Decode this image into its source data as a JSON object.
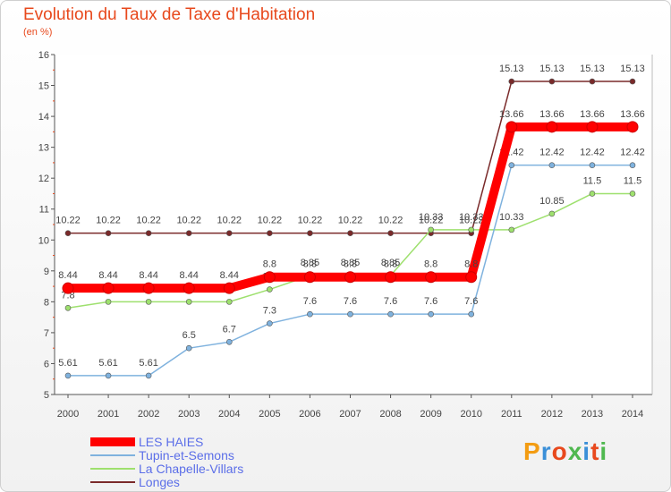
{
  "header": {
    "title": "Evolution du Taux de Taxe d'Habitation",
    "unit": "(en %)"
  },
  "brand": {
    "text": "Proxiti",
    "colors": [
      "#f39c12",
      "#3a8fd8",
      "#e8491d",
      "#4fb84f",
      "#3a8fd8",
      "#e8491d",
      "#4fb84f"
    ]
  },
  "chart_data": {
    "type": "line",
    "x": [
      2000,
      2001,
      2002,
      2003,
      2004,
      2005,
      2006,
      2007,
      2008,
      2009,
      2010,
      2011,
      2012,
      2013,
      2014
    ],
    "ylim": [
      5,
      16
    ],
    "yticks": [
      5,
      6,
      7,
      8,
      9,
      10,
      11,
      12,
      13,
      14,
      15,
      16
    ],
    "ylabel": "(en %)",
    "title": "Evolution du Taux de Taxe d'Habitation",
    "grid": false,
    "legend_position": "bottom-left",
    "series": [
      {
        "name": "Longes",
        "color": "#7a2a2a",
        "values": [
          10.22,
          10.22,
          10.22,
          10.22,
          10.22,
          10.22,
          10.22,
          10.22,
          10.22,
          10.22,
          10.22,
          15.13,
          15.13,
          15.13,
          15.13
        ],
        "labels": [
          "10.22",
          "10.22",
          "10.22",
          "10.22",
          "10.22",
          "10.22",
          "10.22",
          "10.22",
          "10.22",
          "10.22",
          "10.22",
          "15.13",
          "15.13",
          "15.13",
          "15.13"
        ]
      },
      {
        "name": "La Chapelle-Villars",
        "color": "#9ee06e",
        "values": [
          7.8,
          8,
          8,
          8,
          8,
          8.4,
          8.85,
          8.85,
          8.85,
          10.33,
          10.33,
          10.33,
          10.85,
          11.5,
          11.5
        ],
        "labels": [
          "7.8",
          "",
          "",
          "",
          "",
          "8.4",
          "8.85",
          "8.85",
          "8.85",
          "10.33",
          "10.33",
          "10.33",
          "10.85",
          "11.5",
          "11.5"
        ]
      },
      {
        "name": "Tupin-et-Semons",
        "color": "#7fb2de",
        "values": [
          5.61,
          5.61,
          5.61,
          6.5,
          6.7,
          7.3,
          7.6,
          7.6,
          7.6,
          7.6,
          7.6,
          12.42,
          12.42,
          12.42,
          12.42
        ],
        "labels": [
          "5.61",
          "5.61",
          "5.61",
          "6.5",
          "6.7",
          "7.3",
          "7.6",
          "7.6",
          "7.6",
          "7.6",
          "7.6",
          "12.42",
          "12.42",
          "12.42",
          "12.42"
        ]
      },
      {
        "name": "LES HAIES",
        "color": "#ff0000",
        "values": [
          8.44,
          8.44,
          8.44,
          8.44,
          8.44,
          8.8,
          8.8,
          8.8,
          8.8,
          8.8,
          8.8,
          13.66,
          13.66,
          13.66,
          13.66
        ],
        "labels": [
          "8.44",
          "8.44",
          "8.44",
          "8.44",
          "8.44",
          "8.8",
          "8.8",
          "8.8",
          "8.8",
          "8.8",
          "8.8",
          "13.66",
          "13.66",
          "13.66",
          "13.66"
        ]
      }
    ],
    "legend": [
      "LES HAIES",
      "Tupin-et-Semons",
      "La Chapelle-Villars",
      "Longes"
    ]
  }
}
